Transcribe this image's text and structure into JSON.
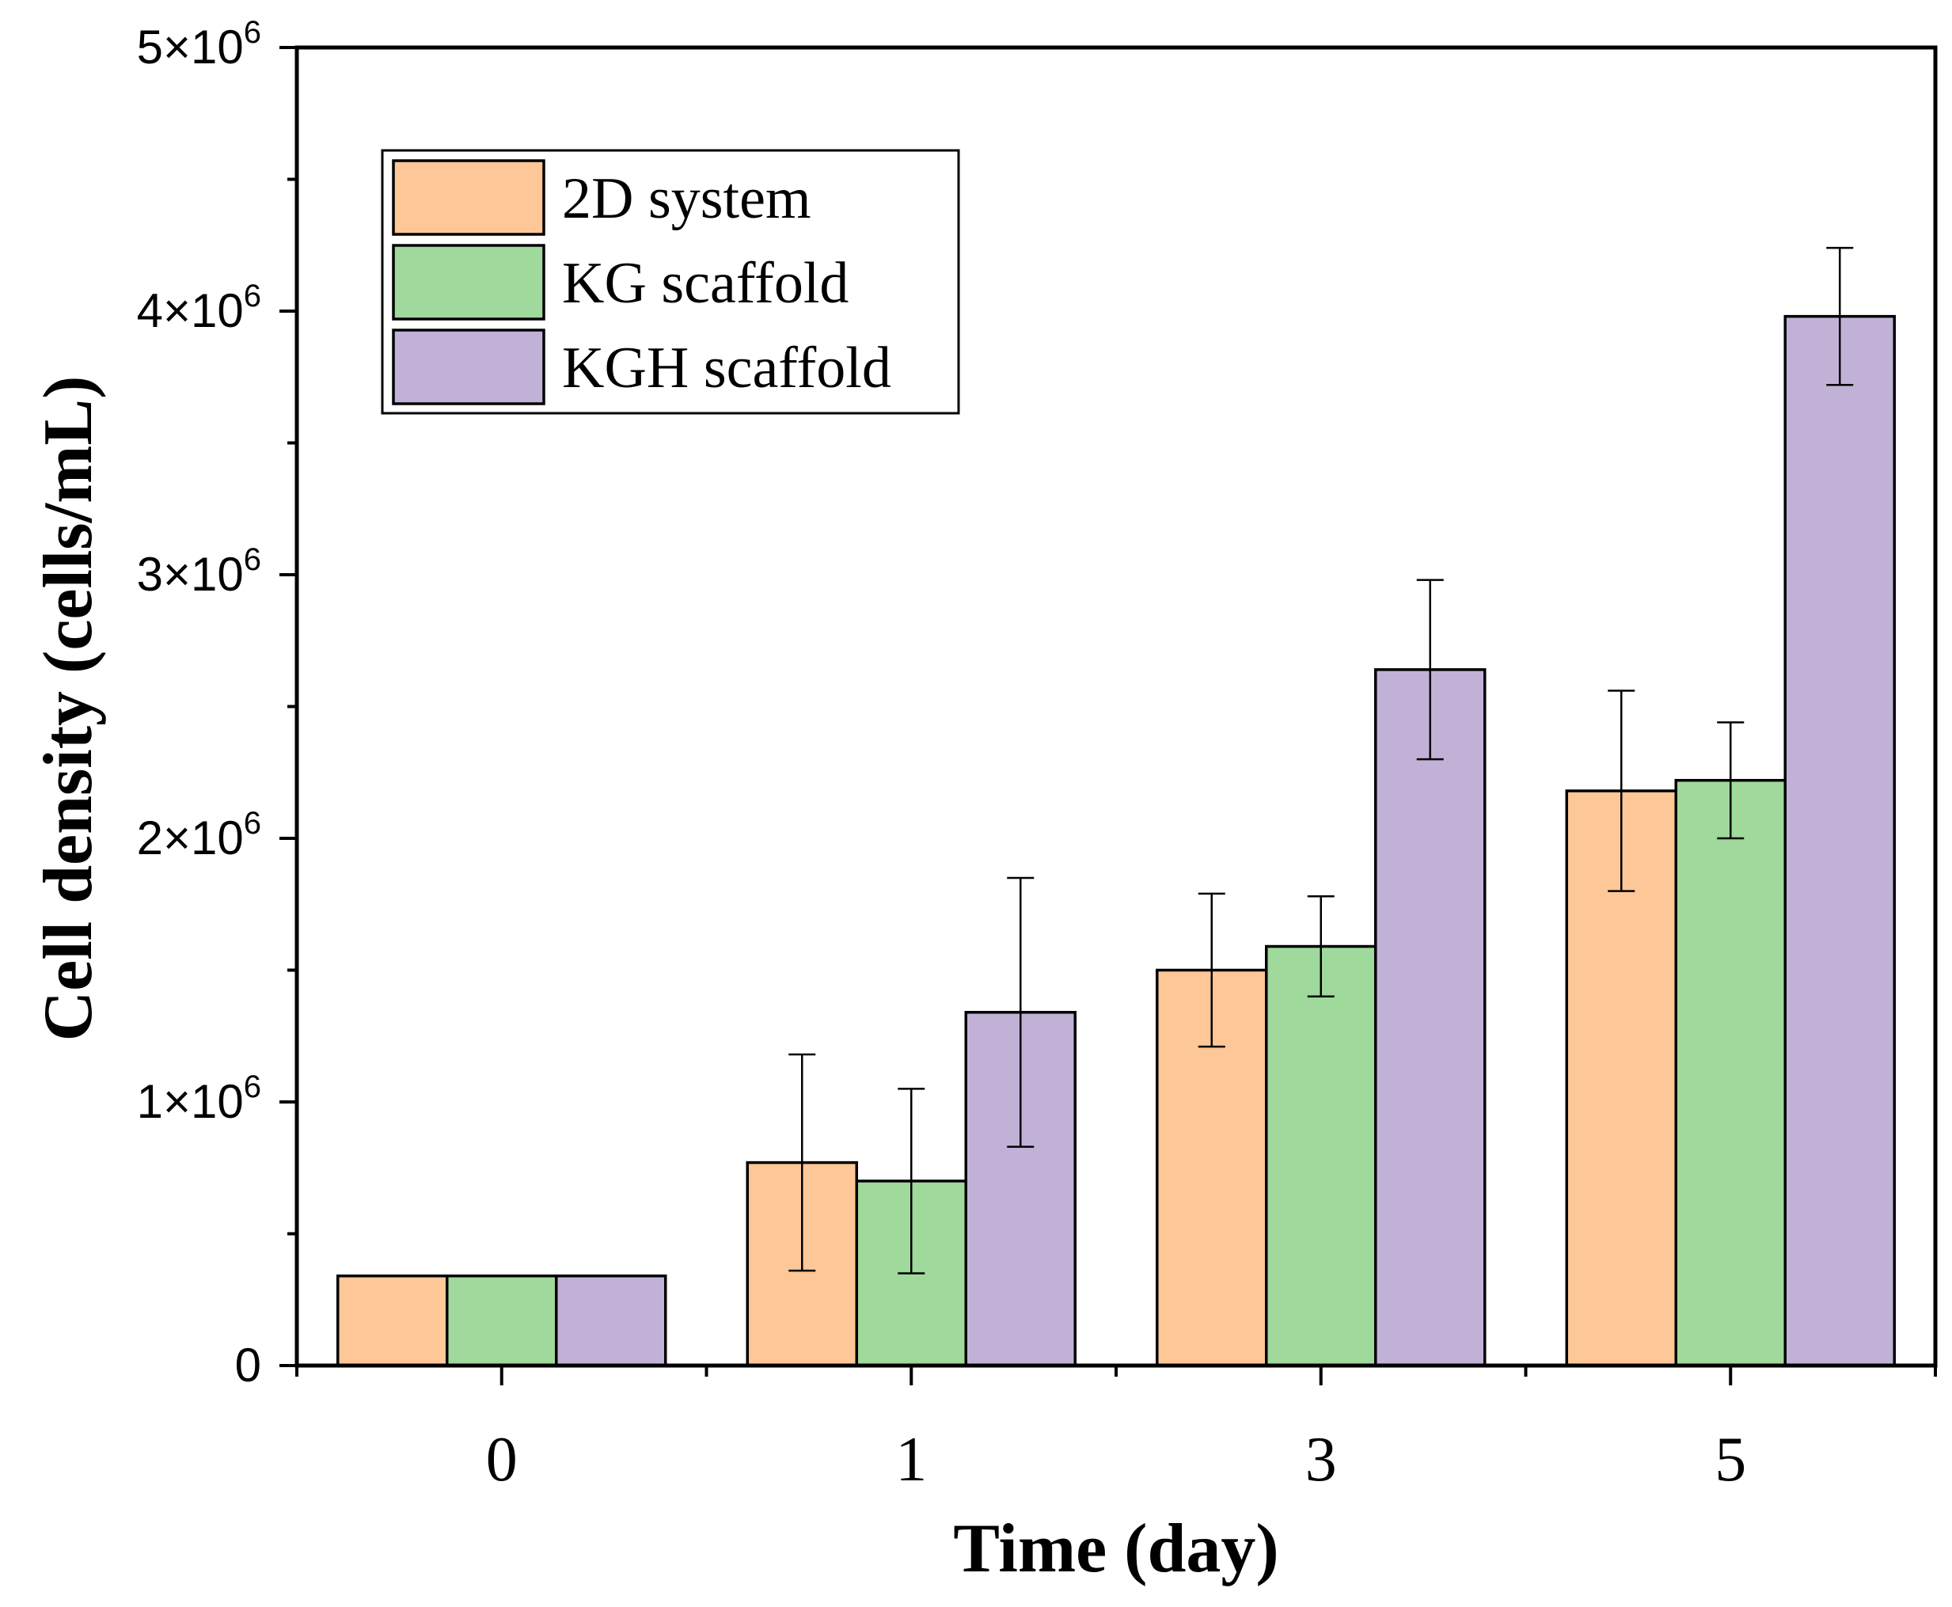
{
  "chart_data": {
    "type": "bar",
    "title": "",
    "xlabel": "Time (day)",
    "ylabel": "Cell density (cells/mL)",
    "categories": [
      "0",
      "1",
      "3",
      "5"
    ],
    "ylim": [
      0,
      5000000
    ],
    "y_ticks": [
      {
        "value": 0,
        "mantissa": "0",
        "exponent": ""
      },
      {
        "value": 1000000,
        "mantissa": "1×10",
        "exponent": "6"
      },
      {
        "value": 2000000,
        "mantissa": "2×10",
        "exponent": "6"
      },
      {
        "value": 3000000,
        "mantissa": "3×10",
        "exponent": "6"
      },
      {
        "value": 4000000,
        "mantissa": "4×10",
        "exponent": "6"
      },
      {
        "value": 5000000,
        "mantissa": "5×10",
        "exponent": "6"
      }
    ],
    "legend_position": "top-left",
    "series": [
      {
        "name": "2D system",
        "color": "#fdc797",
        "values": [
          340000,
          770000,
          1500000,
          2180000
        ],
        "errors": [
          0,
          410000,
          290000,
          380000
        ]
      },
      {
        "name": "KG scaffold",
        "color": "#9fd99b",
        "values": [
          340000,
          700000,
          1590000,
          2220000
        ],
        "errors": [
          0,
          350000,
          190000,
          220000
        ]
      },
      {
        "name": "KGH scaffold",
        "color": "#c2b1d7",
        "values": [
          340000,
          1340000,
          2640000,
          3980000
        ],
        "errors": [
          0,
          510000,
          340000,
          260000
        ]
      }
    ]
  }
}
